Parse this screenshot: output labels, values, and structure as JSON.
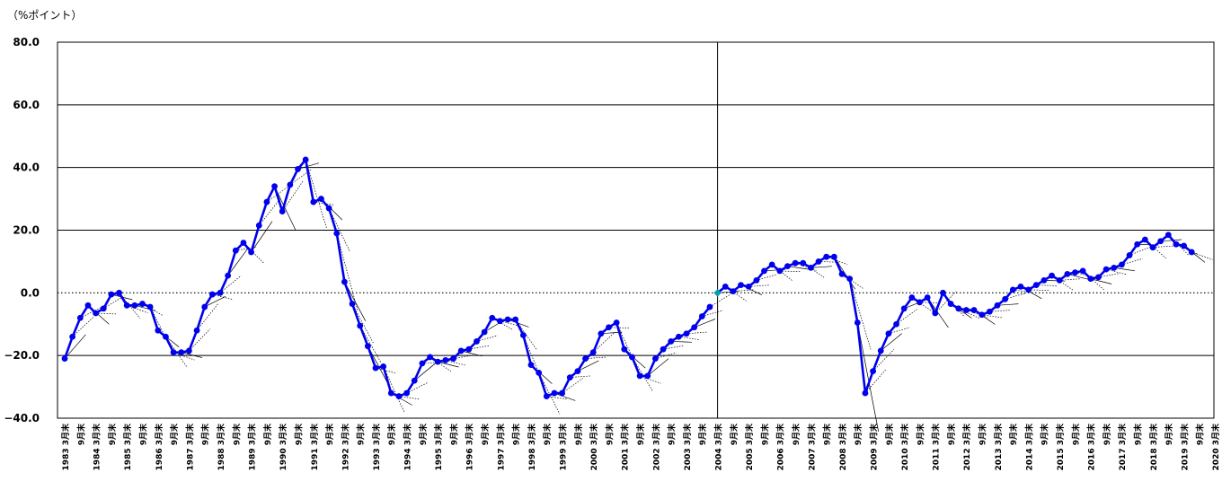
{
  "chart_data": {
    "type": "line",
    "ylabel": "（%ポイント）",
    "ylim": [
      -40,
      80
    ],
    "y_ticks": [
      {
        "value": 80,
        "label": "80.0"
      },
      {
        "value": 60,
        "label": "60.0"
      },
      {
        "value": 40,
        "label": "40.0"
      },
      {
        "value": 20,
        "label": "20.0"
      },
      {
        "value": 0,
        "label": "0.0"
      },
      {
        "value": -20,
        "label": "−20.0"
      },
      {
        "value": -40,
        "label": "−40.0"
      }
    ],
    "grid": true,
    "legend": "none",
    "colors": {
      "series": "#0000ee",
      "forecast": "#000000",
      "axis": "#000000",
      "zero_marker": "#00a0a0"
    },
    "x_labels": [
      "1983 3月末",
      "9月末",
      "1984 3月末",
      "9月末",
      "1985 3月末",
      "9月末",
      "1986 3月末",
      "9月末",
      "1987 3月末",
      "9月末",
      "1988 3月末",
      "9月末",
      "1989 3月末",
      "9月末",
      "1990 3月末",
      "9月末",
      "1991 3月末",
      "9月末",
      "1992 3月末",
      "9月末",
      "1993 3月末",
      "9月末",
      "1994 3月末",
      "9月末",
      "1995 3月末",
      "9月末",
      "1996 3月末",
      "9月末",
      "1997 3月末",
      "9月末",
      "1998 3月末",
      "9月末",
      "1999 3月末",
      "9月末",
      "2000 3月末",
      "9月末",
      "2001 3月末",
      "9月末",
      "2002 3月末",
      "9月末",
      "2003 3月末",
      "9月末",
      "2004 3月末",
      "9月末",
      "2005 3月末",
      "9月末",
      "2006 3月末",
      "9月末",
      "2007 3月末",
      "9月末",
      "2008 3月末",
      "9月末",
      "2009 3月末",
      "9月末",
      "2010 3月末",
      "9月末",
      "2011 3月末",
      "9月末",
      "2012 3月末",
      "9月末",
      "2013 3月末",
      "9月末",
      "2014 3月末",
      "9月末",
      "2015 3月末",
      "9月末",
      "2016 3月末",
      "9月末",
      "2017 3月末",
      "9月末",
      "2018 3月末",
      "9月末",
      "2019 3月末",
      "9月末",
      "2020 3月末"
    ],
    "series": [
      {
        "values": [
          -21,
          -14,
          -8,
          -4,
          -6.5,
          -5,
          -0.5,
          0,
          -4,
          -4,
          -3.5,
          -4.5,
          -12,
          -14,
          -19,
          -19,
          -18.5,
          -12,
          -4.5,
          -0.5,
          0,
          5.5,
          13.5,
          16,
          13,
          21.5,
          29,
          34,
          26,
          34.5,
          39.5,
          42.5,
          29,
          30,
          27,
          19,
          3.5,
          -3.5,
          -10.5,
          -17,
          -24,
          -23.5,
          -32,
          -33,
          -32,
          -28,
          -22.5,
          -20.5,
          -22,
          -21.5,
          -21,
          -18.5,
          -18,
          -15.5,
          -12.5,
          -8,
          -9,
          -8.5,
          -8.5,
          -13.5,
          -23,
          -25.5,
          -33,
          -32,
          -32,
          -27,
          -25,
          -21,
          -19,
          -13,
          -11,
          -9.5,
          -18,
          -20.5,
          -26.5,
          -26.5,
          -21,
          -18,
          -15.5,
          -14,
          -13,
          -11,
          -7.5,
          -4.5,
          0,
          2,
          0.5,
          2.5,
          2,
          4,
          7,
          9,
          7,
          8.5,
          9.5,
          9.5,
          8,
          10,
          11.5,
          11.5,
          6,
          4.5,
          -9.5,
          -32,
          -25,
          -18.5,
          -13,
          -10,
          -5,
          -1.5,
          -3,
          -1.5,
          -6.5,
          0,
          -3.5,
          -5,
          -5.5,
          -5.5,
          -7,
          -6,
          -4,
          -2,
          1,
          2,
          1,
          2.5,
          4,
          5.5,
          4,
          6,
          6.5,
          7,
          4.5,
          5,
          7.5,
          8,
          9,
          12,
          15.5,
          17,
          14.5,
          16.5,
          18.5,
          15.5,
          15,
          13
        ]
      }
    ],
    "annotations": [
      {
        "text": "2004 3月末",
        "note": "vertical divider line"
      }
    ]
  }
}
